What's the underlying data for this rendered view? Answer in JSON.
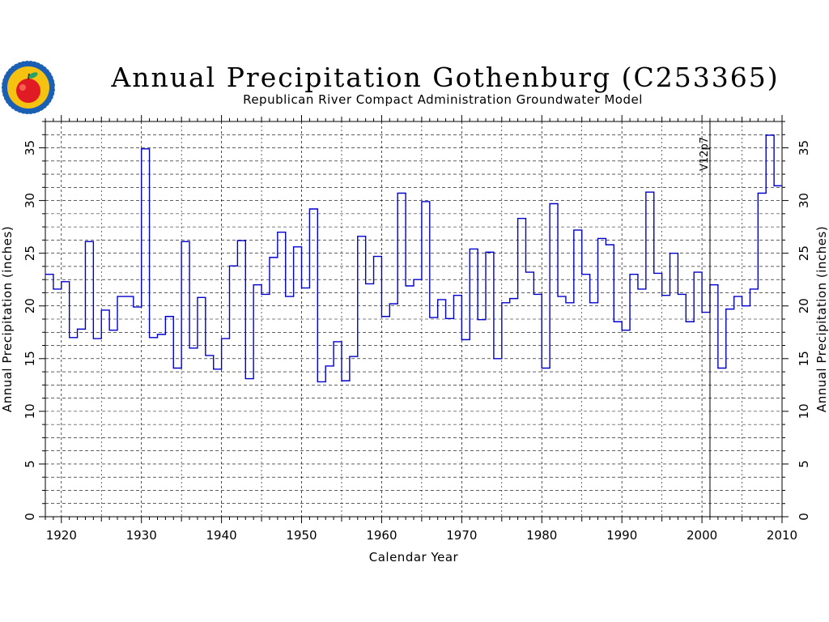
{
  "chart_data": {
    "type": "line",
    "step": true,
    "title": "Annual Precipitation Gothenburg (C253365)",
    "subtitle": "Republican River Compact Administration Groundwater Model",
    "xlabel": "Calendar Year",
    "ylabel": "Annual Precipitation (inches)",
    "xlim": [
      1918,
      2010
    ],
    "ylim": [
      0,
      37.5
    ],
    "x_ticks": [
      "1920",
      "1930",
      "1940",
      "1950",
      "1960",
      "1970",
      "1980",
      "1990",
      "2000",
      "2010"
    ],
    "y_ticks": [
      "0",
      "5",
      "10",
      "15",
      "20",
      "25",
      "30",
      "35"
    ],
    "grid": "dashed",
    "line_color": "#0000cc",
    "annotation": {
      "x": 2001,
      "label": "V12p7"
    },
    "x": [
      1918,
      1919,
      1920,
      1921,
      1922,
      1923,
      1924,
      1925,
      1926,
      1927,
      1928,
      1929,
      1930,
      1931,
      1932,
      1933,
      1934,
      1935,
      1936,
      1937,
      1938,
      1939,
      1940,
      1941,
      1942,
      1943,
      1944,
      1945,
      1946,
      1947,
      1948,
      1949,
      1950,
      1951,
      1952,
      1953,
      1954,
      1955,
      1956,
      1957,
      1958,
      1959,
      1960,
      1961,
      1962,
      1963,
      1964,
      1965,
      1966,
      1967,
      1968,
      1969,
      1970,
      1971,
      1972,
      1973,
      1974,
      1975,
      1976,
      1977,
      1978,
      1979,
      1980,
      1981,
      1982,
      1983,
      1984,
      1985,
      1986,
      1987,
      1988,
      1989,
      1990,
      1991,
      1992,
      1993,
      1994,
      1995,
      1996,
      1997,
      1998,
      1999,
      2000,
      2001,
      2002,
      2003,
      2004,
      2005,
      2006,
      2007,
      2008,
      2009
    ],
    "values": [
      23.0,
      21.6,
      22.3,
      17.0,
      17.8,
      26.1,
      16.9,
      19.6,
      17.7,
      20.9,
      20.9,
      19.9,
      34.9,
      17.0,
      17.3,
      19.0,
      14.1,
      26.1,
      16.0,
      20.8,
      15.3,
      14.0,
      16.9,
      23.8,
      26.2,
      13.1,
      22.0,
      21.1,
      24.6,
      27.0,
      20.9,
      25.6,
      21.7,
      29.2,
      12.8,
      14.3,
      16.6,
      12.9,
      15.2,
      26.6,
      22.1,
      24.7,
      19.0,
      20.2,
      30.7,
      21.9,
      22.5,
      29.9,
      18.9,
      20.6,
      18.8,
      21.0,
      16.8,
      25.4,
      18.7,
      25.1,
      15.0,
      20.3,
      20.7,
      28.3,
      23.2,
      21.1,
      14.1,
      29.7,
      20.9,
      20.3,
      27.2,
      23.0,
      20.3,
      26.4,
      25.8,
      18.5,
      17.7,
      23.0,
      21.6,
      30.8,
      23.1,
      21.0,
      25.0,
      21.1,
      18.5,
      23.2,
      19.4,
      22.0,
      14.1,
      19.7,
      20.9,
      20.0,
      21.6,
      30.7,
      36.2,
      31.4
    ]
  }
}
